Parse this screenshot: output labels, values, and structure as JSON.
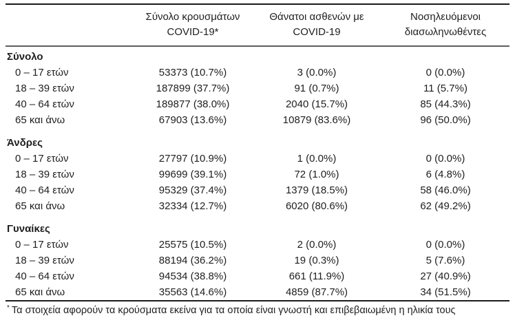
{
  "table": {
    "columns": [
      {
        "line1": "Σύνολο κρουσμάτων",
        "line2": "COVID-19*"
      },
      {
        "line1": "Θάνατοι ασθενών με",
        "line2": "COVID-19"
      },
      {
        "line1": "Νοσηλευόμενοι",
        "line2": "διασωληνωθέντες"
      }
    ],
    "sections": [
      {
        "label": "Σύνολο",
        "rows": [
          {
            "label": "0 – 17 ετών",
            "cases": "53373 (10.7%)",
            "deaths": "3 (0.0%)",
            "intubated": "0 (0.0%)"
          },
          {
            "label": "18 – 39 ετών",
            "cases": "187899 (37.7%)",
            "deaths": "91 (0.7%)",
            "intubated": "11 (5.7%)"
          },
          {
            "label": "40 – 64 ετών",
            "cases": "189877 (38.0%)",
            "deaths": "2040 (15.7%)",
            "intubated": "85 (44.3%)"
          },
          {
            "label": "65 και άνω",
            "cases": "67903 (13.6%)",
            "deaths": "10879 (83.6%)",
            "intubated": "96 (50.0%)"
          }
        ]
      },
      {
        "label": "Άνδρες",
        "rows": [
          {
            "label": "0 – 17 ετών",
            "cases": "27797 (10.9%)",
            "deaths": "1 (0.0%)",
            "intubated": "0 (0.0%)"
          },
          {
            "label": "18 – 39 ετών",
            "cases": "99699 (39.1%)",
            "deaths": "72 (1.0%)",
            "intubated": "6 (4.8%)"
          },
          {
            "label": "40 – 64 ετών",
            "cases": "95329 (37.4%)",
            "deaths": "1379 (18.5%)",
            "intubated": "58 (46.0%)"
          },
          {
            "label": "65 και άνω",
            "cases": "32334 (12.7%)",
            "deaths": "6020 (80.6%)",
            "intubated": "62 (49.2%)"
          }
        ]
      },
      {
        "label": "Γυναίκες",
        "rows": [
          {
            "label": "0 – 17 ετών",
            "cases": "25575 (10.5%)",
            "deaths": "2 (0.0%)",
            "intubated": "0 (0.0%)"
          },
          {
            "label": "18 – 39 ετών",
            "cases": "88194 (36.2%)",
            "deaths": "19 (0.3%)",
            "intubated": "5 (7.6%)"
          },
          {
            "label": "40 – 64 ετών",
            "cases": "94534 (38.8%)",
            "deaths": "661 (11.9%)",
            "intubated": "27 (40.9%)"
          },
          {
            "label": "65 και άνω",
            "cases": "35563 (14.6%)",
            "deaths": "4859 (87.7%)",
            "intubated": "34 (51.5%)"
          }
        ]
      }
    ]
  },
  "footnote": {
    "marker": "*",
    "text": "Τα στοιχεία αφορούν τα κρούσματα εκείνα για τα οποία είναι γνωστή και επιβεβαιωμένη η ηλικία τους"
  },
  "colors": {
    "text": "#1e1e1e",
    "rule_top": "#1a1a1a",
    "rule_header": "#5e5e5e",
    "rule_above_footnote": "#1a1a1a",
    "rule_bottom": "#808080",
    "background": "#ffffff"
  }
}
